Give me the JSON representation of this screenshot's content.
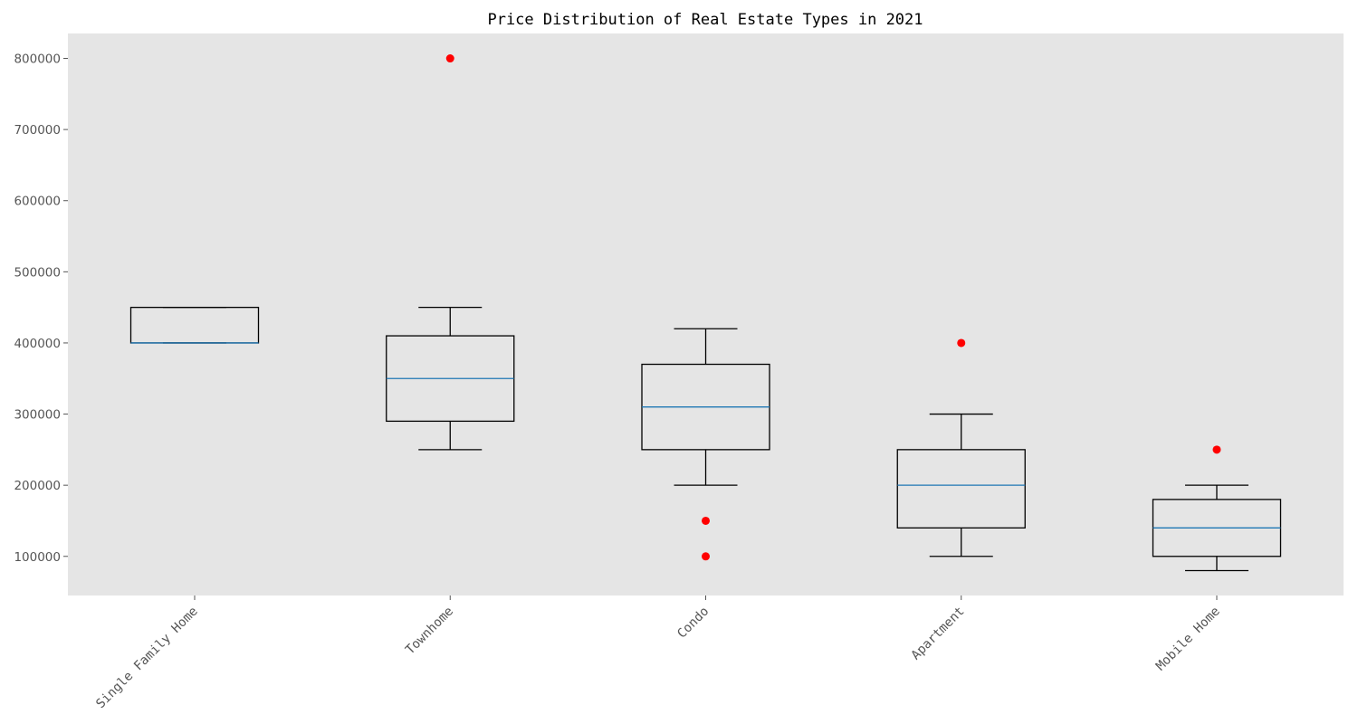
{
  "chart_data": {
    "type": "box",
    "title": "Price Distribution of Real Estate Types in 2021",
    "xlabel": "",
    "ylabel": "",
    "ylim": [
      45000,
      835000
    ],
    "yticks": [
      100000,
      200000,
      300000,
      400000,
      500000,
      600000,
      700000,
      800000
    ],
    "ytick_labels": [
      "100000",
      "200000",
      "300000",
      "400000",
      "500000",
      "600000",
      "700000",
      "800000"
    ],
    "categories": [
      "Single Family Home",
      "Townhome",
      "Condo",
      "Apartment",
      "Mobile Home"
    ],
    "boxes": [
      {
        "whisker_low": 400000,
        "q1": 400000,
        "median": 400000,
        "q3": 450000,
        "whisker_high": 450000,
        "outliers": []
      },
      {
        "whisker_low": 250000,
        "q1": 290000,
        "median": 350000,
        "q3": 410000,
        "whisker_high": 450000,
        "outliers": [
          800000
        ]
      },
      {
        "whisker_low": 200000,
        "q1": 250000,
        "median": 310000,
        "q3": 370000,
        "whisker_high": 420000,
        "outliers": [
          150000,
          100000
        ]
      },
      {
        "whisker_low": 100000,
        "q1": 140000,
        "median": 200000,
        "q3": 250000,
        "whisker_high": 300000,
        "outliers": [
          400000
        ]
      },
      {
        "whisker_low": 80000,
        "q1": 100000,
        "median": 140000,
        "q3": 180000,
        "whisker_high": 200000,
        "outliers": [
          250000
        ]
      }
    ],
    "grid": false,
    "colors": {
      "plot_background": "#e5e5e5",
      "box": "#000000",
      "median": "#1f77b4",
      "outlier": "#ff0000",
      "tick_label": "#555555"
    }
  }
}
